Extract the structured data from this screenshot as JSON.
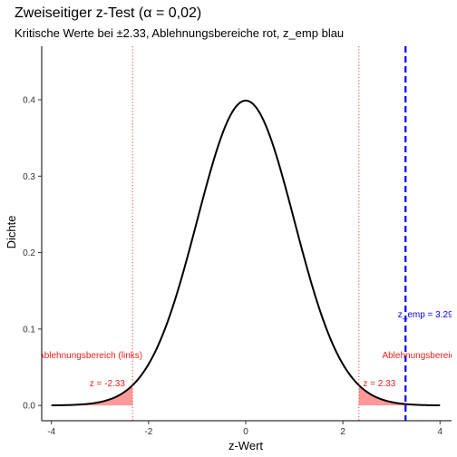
{
  "chart_data": {
    "type": "line",
    "title": "Zweiseitiger z-Test (α = 0,02)",
    "subtitle": "Kritische Werte bei ±2.33, Ablehnungsbereiche rot, z_emp blau",
    "xlabel": "z-Wert",
    "ylabel": "Dichte",
    "xlim": [
      -4.2,
      4.2
    ],
    "ylim": [
      -0.02,
      0.47
    ],
    "x_ticks": [
      -4,
      -2,
      0,
      2,
      4
    ],
    "x_tick_labels": [
      "-4",
      "-2",
      "0",
      "2",
      "4"
    ],
    "y_ticks": [
      0.0,
      0.1,
      0.2,
      0.3,
      0.4
    ],
    "y_tick_labels": [
      "0.0",
      "0.1",
      "0.2",
      "0.3",
      "0.4"
    ],
    "grid": false,
    "series": [
      {
        "distribution": "standard normal density",
        "x_range": [
          -4,
          4
        ],
        "color": "#000000"
      }
    ],
    "critical_values": [
      -2.33,
      2.33
    ],
    "critical_line_color": "#e8413a",
    "rejection_fill_color": "#ff9999",
    "z_emp": 3.29,
    "z_emp_color": "#0000ff",
    "annotations": [
      {
        "text": "Ablehnungsbereich (links)",
        "x": -3.2,
        "y": 0.062,
        "color": "#e8201a"
      },
      {
        "text": "Ablehnungsbereich (rechts)",
        "x": 3.95,
        "y": 0.062,
        "color": "#e8201a"
      },
      {
        "text": "z = -2.33",
        "x": -2.85,
        "y": 0.025,
        "color": "#e8201a"
      },
      {
        "text": "z = 2.33",
        "x": 2.75,
        "y": 0.025,
        "color": "#e8201a"
      },
      {
        "text": "z_emp = 3.29",
        "x": 3.7,
        "y": 0.115,
        "color": "#0000ff"
      }
    ]
  }
}
